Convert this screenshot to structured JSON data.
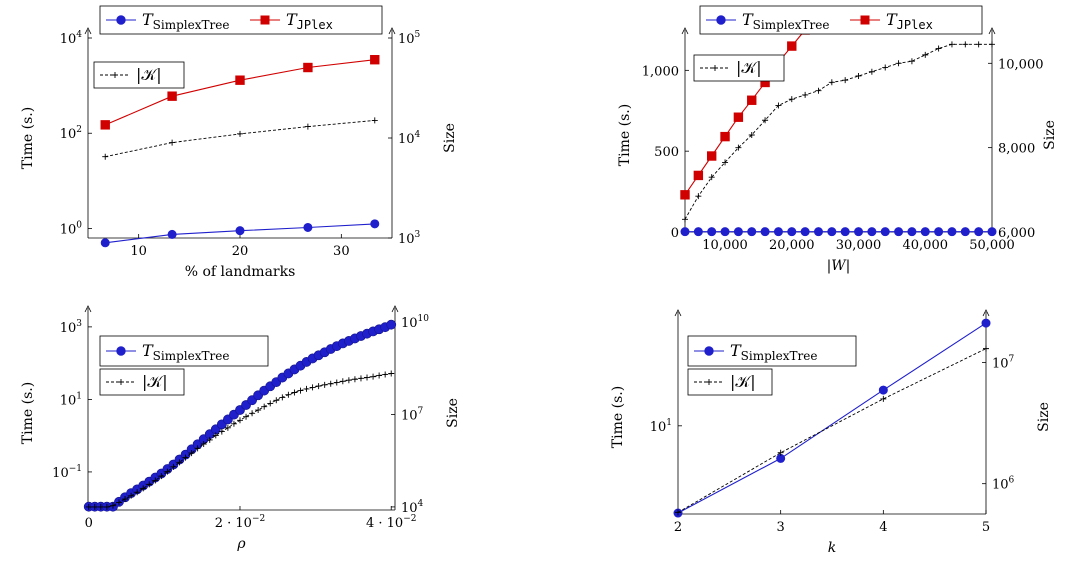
{
  "colors": {
    "simplex": "#1f1fcc",
    "simplex_fill": "#2b2bd6",
    "jplex": "#d10000",
    "size": "#000000"
  },
  "chart_data": [
    {
      "id": "landmarks",
      "type": "line",
      "xlabel": "% of landmarks",
      "ylabel": "Time (s.)",
      "y2label": "Size",
      "xlim": [
        5,
        35
      ],
      "ylim_log10": [
        -0.2,
        4
      ],
      "y2lim_log10": [
        3,
        5
      ],
      "xticks": [
        {
          "v": 10,
          "label": "10"
        },
        {
          "v": 20,
          "label": "20"
        },
        {
          "v": 30,
          "label": "30"
        }
      ],
      "yticks": [
        {
          "v": 0,
          "base": "10",
          "exp": "0"
        },
        {
          "v": 2,
          "base": "10",
          "exp": "2"
        },
        {
          "v": 4,
          "base": "10",
          "exp": "4"
        }
      ],
      "y2ticks": [
        {
          "v": 3,
          "base": "10",
          "exp": "3"
        },
        {
          "v": 4,
          "base": "10",
          "exp": "4"
        },
        {
          "v": 5,
          "base": "10",
          "exp": "5"
        }
      ],
      "series": [
        {
          "name": "T",
          "sub": "SimplexTree",
          "subMono": false,
          "axis": "left",
          "marker": "circle",
          "color": "#1f1fcc",
          "x": [
            6.7,
            13.3,
            20,
            26.7,
            33.3
          ],
          "y": [
            0.5,
            0.75,
            0.9,
            1.05,
            1.25
          ]
        },
        {
          "name": "T",
          "sub": "JPlex",
          "subMono": true,
          "axis": "left",
          "marker": "square",
          "color": "#d10000",
          "x": [
            6.7,
            13.3,
            20,
            26.7,
            33.3
          ],
          "y": [
            150,
            600,
            1300,
            2400,
            3500
          ]
        },
        {
          "name": "|𝒦|",
          "axis": "right",
          "marker": "plus",
          "dashed": true,
          "color": "#000000",
          "x": [
            6.7,
            13.3,
            20,
            26.7,
            33.3
          ],
          "y": [
            6500,
            9000,
            11000,
            13000,
            15000
          ]
        }
      ]
    },
    {
      "id": "witness",
      "type": "line",
      "xlabel": "|W|",
      "ylabel": "Time (s.)",
      "y2label": "Size",
      "xlim": [
        4000,
        50000
      ],
      "ylim": [
        0,
        1200
      ],
      "y2lim": [
        6000,
        10600
      ],
      "xticks": [
        {
          "v": 10000,
          "label": "10,000"
        },
        {
          "v": 20000,
          "label": "20,000"
        },
        {
          "v": 30000,
          "label": "30,000"
        },
        {
          "v": 40000,
          "label": "40,000"
        },
        {
          "v": 50000,
          "label": "50,000"
        }
      ],
      "yticks": [
        {
          "v": 0,
          "label": "0"
        },
        {
          "v": 500,
          "label": "500"
        },
        {
          "v": 1000,
          "label": "1,000"
        }
      ],
      "y2ticks": [
        {
          "v": 6000,
          "label": "6,000"
        },
        {
          "v": 8000,
          "label": "8,000"
        },
        {
          "v": 10000,
          "label": "10,000"
        }
      ],
      "series": [
        {
          "name": "T",
          "sub": "SimplexTree",
          "subMono": false,
          "axis": "left",
          "marker": "circle",
          "color": "#1f1fcc",
          "x": [
            4000,
            6000,
            8000,
            10000,
            12000,
            14000,
            16000,
            18000,
            20000,
            22000,
            24000,
            26000,
            28000,
            30000,
            32000,
            34000,
            36000,
            38000,
            40000,
            42000,
            44000,
            46000,
            48000,
            50000
          ],
          "y": [
            2,
            2,
            2,
            2,
            2,
            2,
            2,
            2,
            2,
            2,
            2,
            2,
            2,
            2,
            2,
            2,
            2,
            2,
            2,
            2,
            2,
            2,
            2,
            2
          ]
        },
        {
          "name": "T",
          "sub": "JPlex",
          "subMono": true,
          "axis": "left",
          "marker": "square",
          "color": "#d10000",
          "x": [
            4000,
            6000,
            8000,
            10000,
            12000,
            14000,
            16000,
            18000,
            20000,
            22000
          ],
          "y": [
            230,
            350,
            470,
            590,
            710,
            815,
            925,
            1050,
            1150,
            1250
          ]
        },
        {
          "name": "|𝒦|",
          "axis": "right",
          "marker": "plus",
          "dashed": true,
          "color": "#000000",
          "x": [
            4000,
            6000,
            8000,
            10000,
            12000,
            14000,
            16000,
            18000,
            20000,
            22000,
            24000,
            26000,
            28000,
            30000,
            32000,
            34000,
            36000,
            38000,
            40000,
            42000,
            44000,
            46000,
            48000,
            50000
          ],
          "y": [
            6300,
            6850,
            7300,
            7650,
            8000,
            8300,
            8650,
            9000,
            9150,
            9250,
            9350,
            9550,
            9600,
            9700,
            9800,
            9900,
            10000,
            10050,
            10200,
            10350,
            10450,
            10450,
            10450,
            10450
          ]
        }
      ]
    },
    {
      "id": "rho",
      "type": "line",
      "xlabel": "ρ",
      "ylabel": "Time (s.)",
      "y2label": "Size",
      "xlim": [
        -0.0001,
        0.0405
      ],
      "ylim_log10": [
        -2.05,
        3.3
      ],
      "y2lim_log10": [
        3.9,
        10.2
      ],
      "xticks": [
        {
          "v": 0,
          "label": "0"
        },
        {
          "v": 0.02,
          "mant": "2 · 10",
          "exp": "−2"
        },
        {
          "v": 0.04,
          "mant": "4 · 10",
          "exp": "−2"
        }
      ],
      "yticks": [
        {
          "v": -1,
          "base": "10",
          "exp": "−1"
        },
        {
          "v": 1,
          "base": "10",
          "exp": "1"
        },
        {
          "v": 3,
          "base": "10",
          "exp": "3"
        }
      ],
      "y2ticks": [
        {
          "v": 4,
          "base": "10",
          "exp": "4"
        },
        {
          "v": 7,
          "base": "10",
          "exp": "7"
        },
        {
          "v": 10,
          "base": "10",
          "exp": "10"
        }
      ],
      "series": [
        {
          "name": "T",
          "sub": "SimplexTree",
          "subMono": false,
          "axis": "left",
          "marker": "circle",
          "big": true,
          "color": "#1f1fcc",
          "x": [
            0,
            0.0008,
            0.0016,
            0.0024,
            0.0032,
            0.004,
            0.0048,
            0.0056,
            0.0064,
            0.0072,
            0.008,
            0.0088,
            0.0096,
            0.0104,
            0.0112,
            0.012,
            0.0128,
            0.0136,
            0.0144,
            0.0152,
            0.016,
            0.0168,
            0.0176,
            0.0184,
            0.0192,
            0.02,
            0.0208,
            0.0216,
            0.0224,
            0.0232,
            0.024,
            0.0248,
            0.0256,
            0.0264,
            0.0272,
            0.028,
            0.0288,
            0.0296,
            0.0304,
            0.0312,
            0.032,
            0.0328,
            0.0336,
            0.0344,
            0.0352,
            0.036,
            0.0368,
            0.0376,
            0.0384,
            0.0392,
            0.04
          ],
          "y": [
            0.011,
            0.011,
            0.011,
            0.011,
            0.011,
            0.015,
            0.02,
            0.026,
            0.033,
            0.042,
            0.054,
            0.07,
            0.09,
            0.12,
            0.16,
            0.22,
            0.3,
            0.42,
            0.58,
            0.8,
            1.1,
            1.5,
            2.05,
            2.8,
            3.8,
            5.1,
            7,
            9.5,
            13,
            17.5,
            23,
            30,
            40,
            52,
            67,
            85,
            108,
            135,
            165,
            200,
            245,
            295,
            350,
            410,
            480,
            560,
            650,
            750,
            860,
            980,
            1150
          ]
        },
        {
          "name": "|𝒦|",
          "axis": "right",
          "marker": "plus",
          "dashed": true,
          "color": "#000000",
          "x": [
            0,
            0.0008,
            0.0016,
            0.0024,
            0.0032,
            0.004,
            0.0048,
            0.0056,
            0.0064,
            0.0072,
            0.008,
            0.0088,
            0.0096,
            0.0104,
            0.0112,
            0.012,
            0.0128,
            0.0136,
            0.0144,
            0.0152,
            0.016,
            0.0168,
            0.0176,
            0.0184,
            0.0192,
            0.02,
            0.0208,
            0.0216,
            0.0224,
            0.0232,
            0.024,
            0.0248,
            0.0256,
            0.0264,
            0.0272,
            0.028,
            0.0288,
            0.0296,
            0.0304,
            0.0312,
            0.032,
            0.0328,
            0.0336,
            0.0344,
            0.0352,
            0.036,
            0.0368,
            0.0376,
            0.0384,
            0.0392,
            0.04
          ],
          "y": [
            10000,
            10000,
            10000,
            10000,
            11000,
            14000,
            18000,
            23000,
            30000,
            40000,
            54000,
            72000,
            100000,
            140000,
            200000,
            280000,
            400000,
            560000,
            800000,
            1100000,
            1500000,
            2100000,
            2800000,
            3700000,
            5000000,
            6500000,
            8500000,
            11000000,
            14000000,
            18000000,
            23000000,
            29000000,
            36000000,
            44000000,
            52000000,
            60000000,
            68000000,
            76000000,
            84000000,
            92000000,
            100000000,
            110000000,
            120000000,
            130000000,
            140000000,
            150000000,
            160000000,
            170000000,
            185000000,
            200000000,
            215000000
          ]
        }
      ]
    },
    {
      "id": "k",
      "type": "line",
      "xlabel": "k",
      "ylabel": "Time (s.)",
      "y2label": "Size",
      "xlim": [
        2,
        5
      ],
      "ylim_log10": [
        0.4,
        1.72
      ],
      "y2lim_log10": [
        5.75,
        7.35
      ],
      "xticks": [
        {
          "v": 2,
          "label": "2"
        },
        {
          "v": 3,
          "label": "3"
        },
        {
          "v": 4,
          "label": "4"
        },
        {
          "v": 5,
          "label": "5"
        }
      ],
      "yticks": [
        {
          "v": 1,
          "base": "10",
          "exp": "1"
        }
      ],
      "y2ticks": [
        {
          "v": 6,
          "base": "10",
          "exp": "6"
        },
        {
          "v": 7,
          "base": "10",
          "exp": "7"
        }
      ],
      "series": [
        {
          "name": "T",
          "sub": "SimplexTree",
          "subMono": false,
          "axis": "left",
          "marker": "circle",
          "color": "#1f1fcc",
          "x": [
            2,
            3,
            4,
            5
          ],
          "y": [
            2.55,
            6.0,
            17.5,
            50
          ]
        },
        {
          "name": "|𝒦|",
          "axis": "right",
          "marker": "plus",
          "dashed": true,
          "color": "#000000",
          "x": [
            2,
            3,
            4,
            5
          ],
          "y": [
            580000,
            1800000,
            5000000,
            13000000
          ]
        }
      ]
    }
  ]
}
